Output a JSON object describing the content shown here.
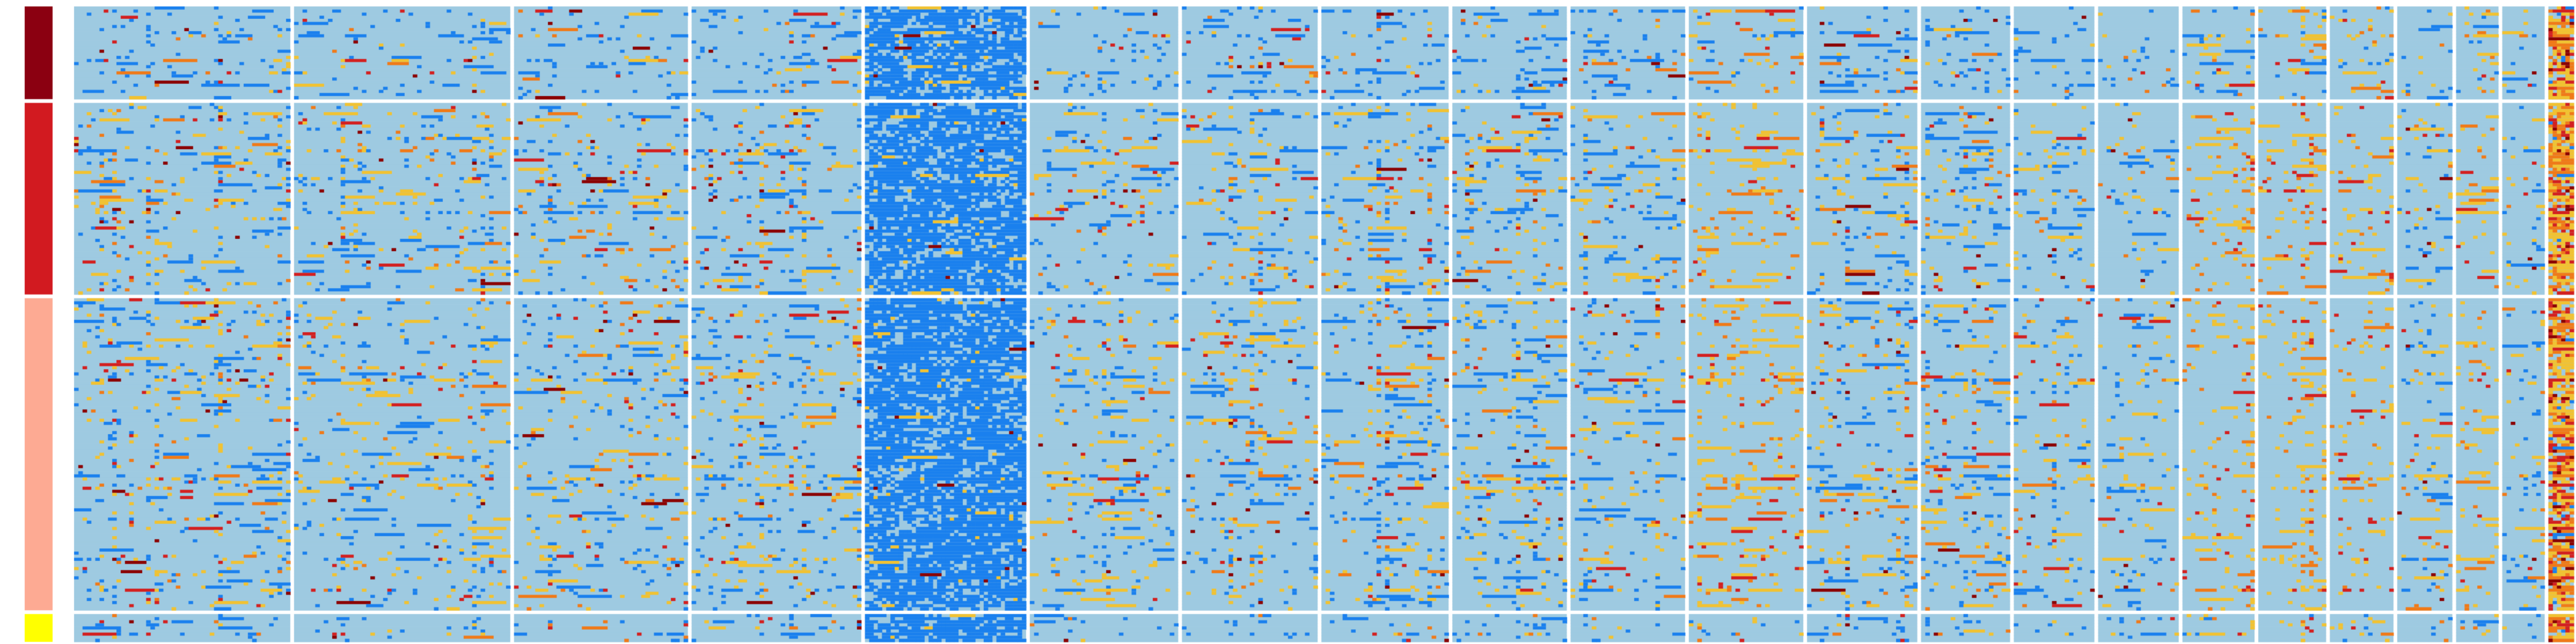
{
  "chart_data": {
    "type": "heatmap",
    "title": "",
    "xlabel": "",
    "ylabel": "",
    "legend": "none",
    "grid": false,
    "row_annotation": {
      "groups": [
        {
          "color": "#8b0011",
          "rows": 30
        },
        {
          "color": "#d21a20",
          "rows": 62
        },
        {
          "color": "#fdaa93",
          "rows": 101
        },
        {
          "color": "#ffff00",
          "rows": 9
        }
      ]
    },
    "column_blocks": [
      {
        "cols": 51,
        "mode": "sparse-mixed"
      },
      {
        "cols": 51,
        "mode": "sparse-mixed"
      },
      {
        "cols": 41,
        "mode": "sparse-mixed"
      },
      {
        "cols": 40,
        "mode": "sparse-mixed"
      },
      {
        "cols": 38,
        "mode": "dense-blue"
      },
      {
        "cols": 35,
        "mode": "sparse-mixed"
      },
      {
        "cols": 32,
        "mode": "sparse-mixed"
      },
      {
        "cols": 30,
        "mode": "sparse-mixed"
      },
      {
        "cols": 27,
        "mode": "sparse-mixed"
      },
      {
        "cols": 27,
        "mode": "sparse-mixed"
      },
      {
        "cols": 27,
        "mode": "sparse-warm"
      },
      {
        "cols": 26,
        "mode": "sparse-mixed"
      },
      {
        "cols": 21,
        "mode": "sparse-mixed"
      },
      {
        "cols": 19,
        "mode": "sparse-mixed"
      },
      {
        "cols": 19,
        "mode": "sparse-mixed"
      },
      {
        "cols": 17,
        "mode": "sparse-warm"
      },
      {
        "cols": 16,
        "mode": "sparse-warm"
      },
      {
        "cols": 15,
        "mode": "sparse-warm"
      },
      {
        "cols": 13,
        "mode": "sparse-mixed"
      },
      {
        "cols": 10,
        "mode": "sparse-warm"
      },
      {
        "cols": 10,
        "mode": "sparse-mixed"
      },
      {
        "cols": 6,
        "mode": "dense-warm"
      }
    ],
    "value_colors": {
      "background": "#9ecae1",
      "low": "#1a80ee",
      "mid": "#f1c232",
      "high_orange": "#f07a18",
      "high": "#d32020",
      "very_high": "#8b0000"
    }
  }
}
